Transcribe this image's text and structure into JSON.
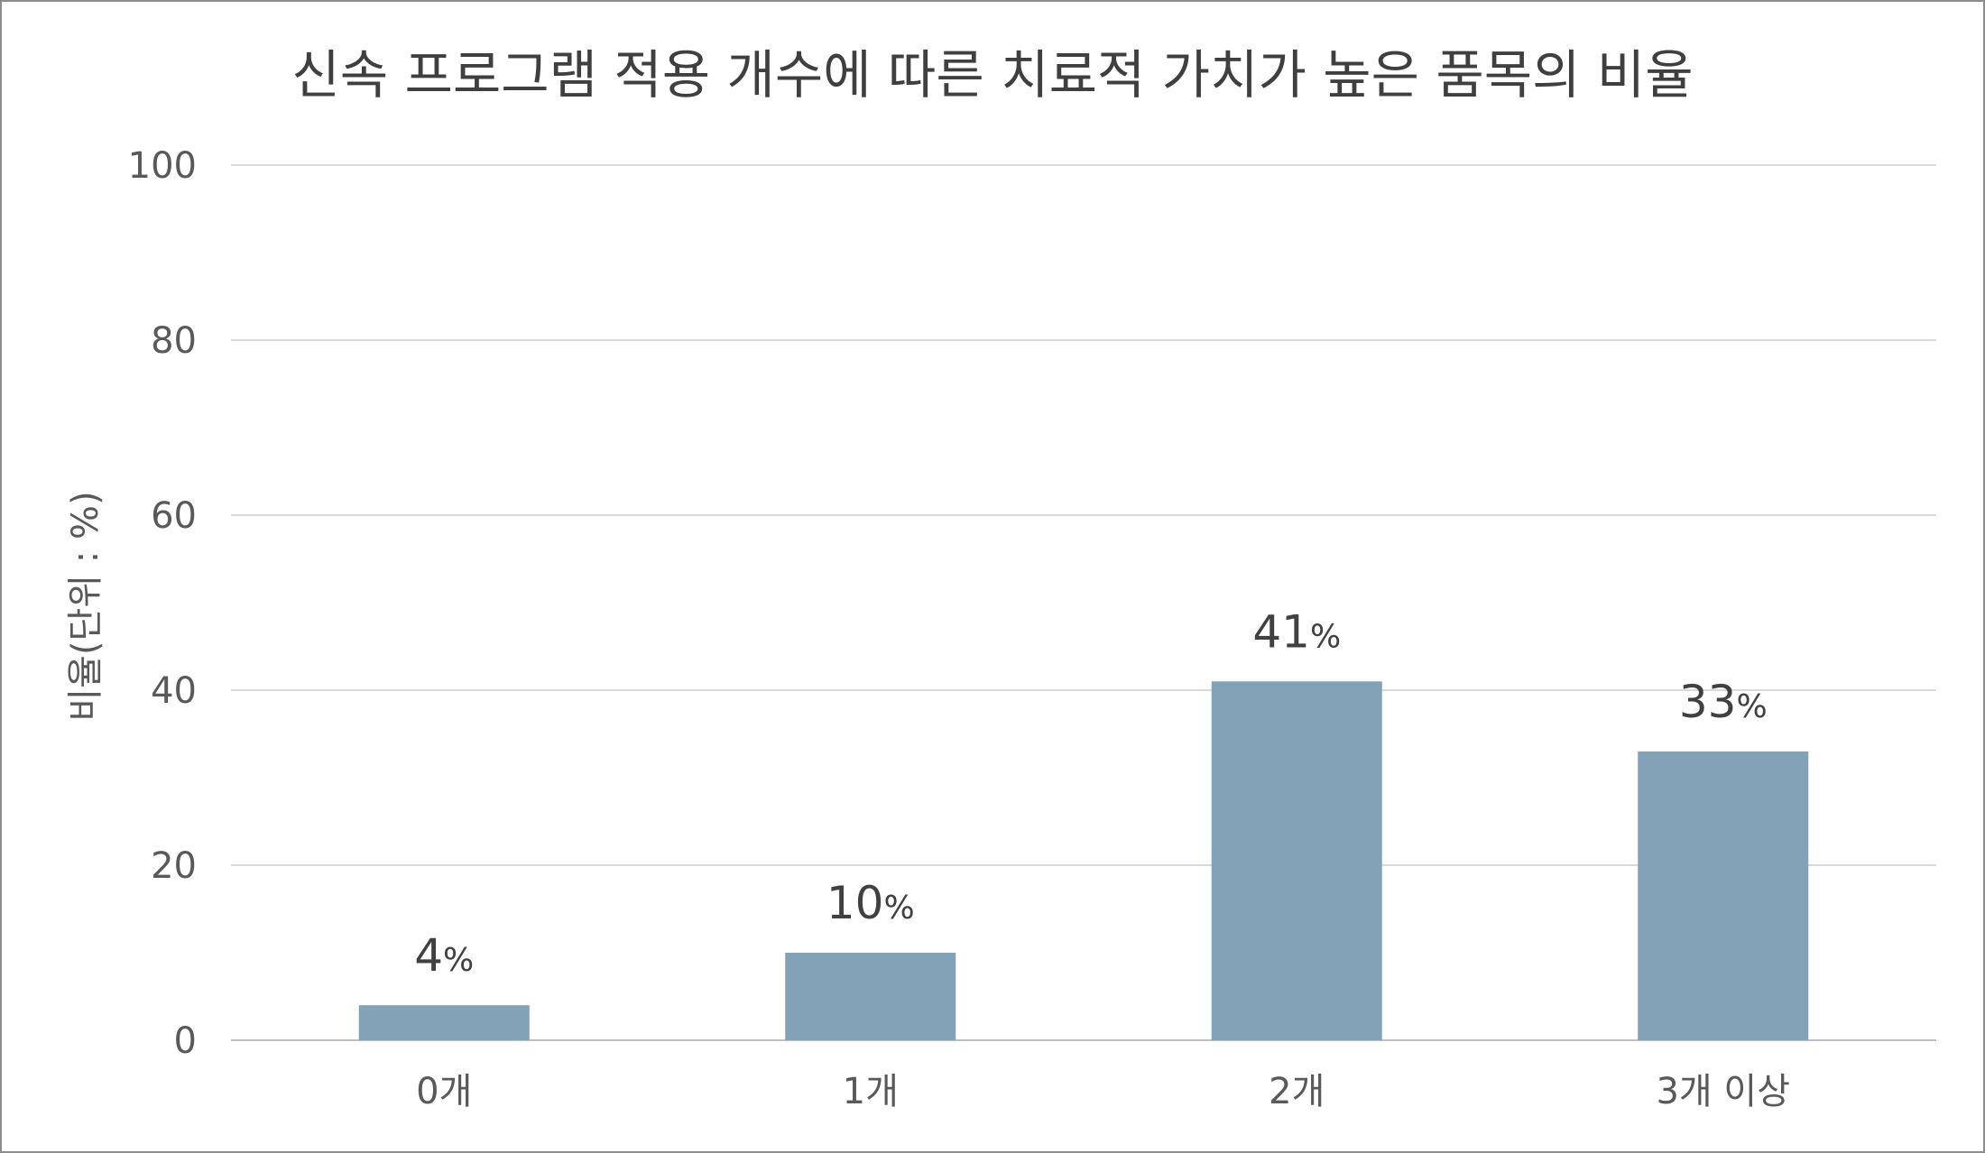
{
  "chart_data": {
    "type": "bar",
    "title": "신속 프로그램 적용 개수에 따른 치료적 가치가 높은 품목의 비율",
    "ylabel": "비율(단위 : %)",
    "xlabel": "",
    "categories": [
      "0개",
      "1개",
      "2개",
      "3개 이상"
    ],
    "values": [
      4,
      10,
      41,
      33
    ],
    "data_labels": [
      "4",
      "10",
      "41",
      "33"
    ],
    "data_label_suffix": "%",
    "ylim": [
      0,
      100
    ],
    "yticks": [
      "0",
      "20",
      "40",
      "60",
      "80",
      "100"
    ],
    "ytick_values": [
      0,
      20,
      40,
      60,
      80,
      100
    ],
    "grid": true,
    "legend": "none",
    "colors": {
      "bar": "#82a2b7",
      "grid": "#d9d9d9",
      "axis": "#bfbfbf",
      "frame": "#8c8c8c"
    }
  }
}
